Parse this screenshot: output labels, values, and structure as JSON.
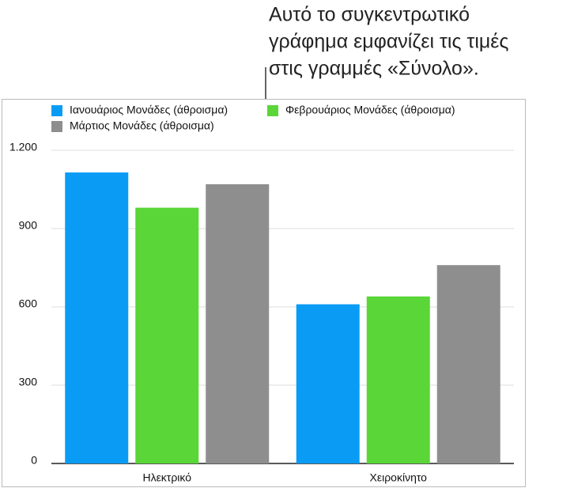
{
  "chart_data": {
    "type": "bar",
    "annotation": [
      "Αυτό το συγκεντρωτικό",
      "γράφημα εμφανίζει τις τιμές",
      "στις γραμμές «Σύνολο»."
    ],
    "categories": [
      "Ηλεκτρικό",
      "Χειροκίνητο"
    ],
    "series": [
      {
        "name": "Ιανουάριος Μονάδες (άθροισμα)",
        "color": "#0a9cf5",
        "values": [
          1115,
          610
        ]
      },
      {
        "name": "Φεβρουάριος Μονάδες (άθροισμα)",
        "color": "#5ad638",
        "values": [
          980,
          640
        ]
      },
      {
        "name": "Μάρτιος Μονάδες (άθροισμα)",
        "color": "#8e8e8e",
        "values": [
          1070,
          760
        ]
      }
    ],
    "ylim": [
      0,
      1200
    ],
    "yticks": [
      0,
      300,
      600,
      900,
      {
        "value": 1200,
        "label": "1.200"
      }
    ],
    "grid": true,
    "legend": "top"
  }
}
